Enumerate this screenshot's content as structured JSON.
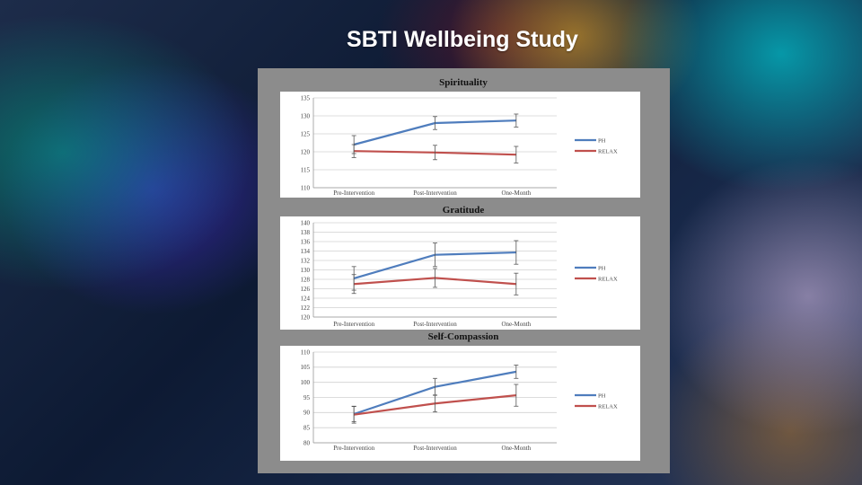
{
  "slide": {
    "title": "SBTI Wellbeing Study"
  },
  "colors": {
    "ph": "#4f7dbd",
    "relax": "#c0504d",
    "grid": "#d0d0d0",
    "errorbar": "#555555"
  },
  "chart_data": [
    {
      "type": "line",
      "title": "Spirituality",
      "categories": [
        "Pre-Intervention",
        "Post-Intervention",
        "One-Month"
      ],
      "ylim": [
        110,
        135
      ],
      "yticks": [
        110,
        115,
        120,
        125,
        130,
        135
      ],
      "grid": true,
      "legend": "right",
      "series": [
        {
          "name": "PH",
          "values": [
            122,
            128,
            128.7
          ],
          "errors": [
            2.5,
            1.8,
            1.8
          ]
        },
        {
          "name": "RELAX",
          "values": [
            120.2,
            119.8,
            119.2
          ],
          "errors": [
            1.8,
            2.0,
            2.3
          ]
        }
      ]
    },
    {
      "type": "line",
      "title": "Gratitude",
      "categories": [
        "Pre-Intervention",
        "Post-Intervention",
        "One-Month"
      ],
      "ylim": [
        120,
        140
      ],
      "yticks": [
        120,
        122,
        124,
        126,
        128,
        130,
        132,
        134,
        136,
        138,
        140
      ],
      "grid": true,
      "legend": "right",
      "series": [
        {
          "name": "PH",
          "values": [
            128.2,
            133.2,
            133.7
          ],
          "errors": [
            2.5,
            2.5,
            2.5
          ]
        },
        {
          "name": "RELAX",
          "values": [
            127,
            128.3,
            127
          ],
          "errors": [
            2.0,
            2.0,
            2.3
          ]
        }
      ]
    },
    {
      "type": "line",
      "title": "Self-Compassion",
      "categories": [
        "Pre-Intervention",
        "Post-Intervention",
        "One-Month"
      ],
      "ylim": [
        80,
        110
      ],
      "yticks": [
        80,
        85,
        90,
        95,
        100,
        105,
        110
      ],
      "grid": true,
      "legend": "right",
      "series": [
        {
          "name": "PH",
          "values": [
            89.5,
            98.5,
            103.5
          ],
          "errors": [
            2.5,
            2.8,
            2.2
          ]
        },
        {
          "name": "RELAX",
          "values": [
            89.3,
            93,
            95.7
          ],
          "errors": [
            2.8,
            2.8,
            3.6
          ]
        }
      ]
    }
  ]
}
